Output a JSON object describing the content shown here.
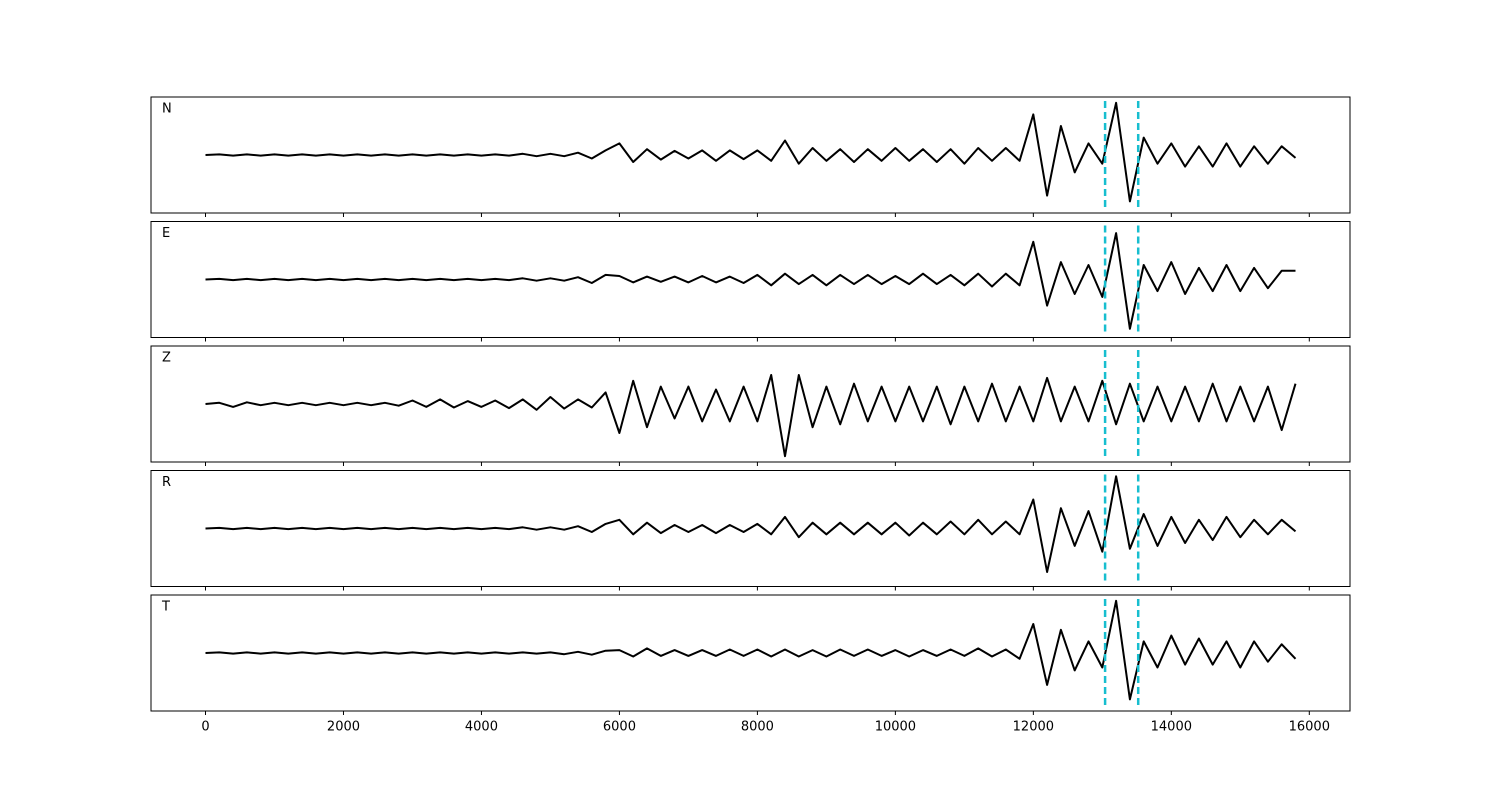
{
  "chart_data": {
    "type": "line",
    "x": [
      0,
      200,
      400,
      600,
      800,
      1000,
      1200,
      1400,
      1600,
      1800,
      2000,
      2200,
      2400,
      2600,
      2800,
      3000,
      3200,
      3400,
      3600,
      3800,
      4000,
      4200,
      4400,
      4600,
      4800,
      5000,
      5200,
      5400,
      5600,
      5800,
      6000,
      6200,
      6400,
      6600,
      6800,
      7000,
      7200,
      7400,
      7600,
      7800,
      8000,
      8200,
      8400,
      8600,
      8800,
      9000,
      9200,
      9400,
      9600,
      9800,
      10000,
      10200,
      10400,
      10600,
      10800,
      11000,
      11200,
      11400,
      11600,
      11800,
      12000,
      12200,
      12400,
      12600,
      12800,
      13000,
      13200,
      13400,
      13600,
      13800,
      14000,
      14200,
      14400,
      14600,
      14800,
      15000,
      15200,
      15400,
      15600,
      15800
    ],
    "xlim": [
      -790,
      16590
    ],
    "xticks": [
      0,
      2000,
      4000,
      6000,
      8000,
      10000,
      12000,
      14000,
      16000
    ],
    "ylim": [
      -1,
      1
    ],
    "series": [
      {
        "name": "N",
        "color": "#000000",
        "values": [
          0,
          0.01,
          -0.01,
          0.01,
          -0.01,
          0.01,
          -0.01,
          0.01,
          -0.01,
          0.01,
          -0.01,
          0.01,
          -0.01,
          0.01,
          -0.01,
          0.01,
          -0.01,
          0.01,
          -0.01,
          0.01,
          -0.01,
          0.01,
          -0.01,
          0.02,
          -0.02,
          0.02,
          -0.02,
          0.04,
          -0.06,
          0.08,
          0.2,
          -0.12,
          0.1,
          -0.08,
          0.07,
          -0.06,
          0.08,
          -0.1,
          0.08,
          -0.07,
          0.08,
          -0.1,
          0.25,
          -0.15,
          0.12,
          -0.1,
          0.1,
          -0.12,
          0.1,
          -0.1,
          0.12,
          -0.1,
          0.1,
          -0.12,
          0.1,
          -0.15,
          0.12,
          -0.1,
          0.12,
          -0.1,
          0.7,
          -0.7,
          0.5,
          -0.3,
          0.2,
          -0.15,
          0.9,
          -0.8,
          0.3,
          -0.15,
          0.2,
          -0.2,
          0.15,
          -0.2,
          0.2,
          -0.2,
          0.15,
          -0.15,
          0.15,
          -0.05
        ]
      },
      {
        "name": "E",
        "color": "#000000",
        "values": [
          0,
          0.01,
          -0.01,
          0.01,
          -0.01,
          0.01,
          -0.01,
          0.01,
          -0.01,
          0.01,
          -0.01,
          0.01,
          -0.01,
          0.01,
          -0.01,
          0.01,
          -0.01,
          0.01,
          -0.01,
          0.01,
          -0.01,
          0.01,
          -0.01,
          0.02,
          -0.02,
          0.02,
          -0.02,
          0.04,
          -0.06,
          0.08,
          0.06,
          -0.05,
          0.05,
          -0.04,
          0.05,
          -0.05,
          0.06,
          -0.05,
          0.05,
          -0.06,
          0.08,
          -0.1,
          0.1,
          -0.08,
          0.08,
          -0.1,
          0.08,
          -0.08,
          0.08,
          -0.08,
          0.06,
          -0.08,
          0.1,
          -0.08,
          0.08,
          -0.1,
          0.1,
          -0.12,
          0.1,
          -0.1,
          0.65,
          -0.45,
          0.3,
          -0.25,
          0.25,
          -0.3,
          0.8,
          -0.85,
          0.25,
          -0.2,
          0.3,
          -0.25,
          0.2,
          -0.2,
          0.25,
          -0.2,
          0.2,
          -0.15,
          0.15,
          0.15
        ]
      },
      {
        "name": "Z",
        "color": "#000000",
        "values": [
          0,
          0.02,
          -0.05,
          0.03,
          -0.02,
          0.02,
          -0.02,
          0.02,
          -0.02,
          0.02,
          -0.02,
          0.02,
          -0.02,
          0.02,
          -0.03,
          0.06,
          -0.05,
          0.08,
          -0.06,
          0.05,
          -0.05,
          0.06,
          -0.07,
          0.08,
          -0.1,
          0.12,
          -0.08,
          0.08,
          -0.06,
          0.2,
          -0.5,
          0.4,
          -0.4,
          0.3,
          -0.25,
          0.3,
          -0.3,
          0.25,
          -0.3,
          0.3,
          -0.3,
          0.5,
          -0.9,
          0.5,
          -0.4,
          0.3,
          -0.35,
          0.35,
          -0.3,
          0.3,
          -0.3,
          0.3,
          -0.3,
          0.3,
          -0.35,
          0.3,
          -0.3,
          0.35,
          -0.3,
          0.3,
          -0.3,
          0.45,
          -0.3,
          0.3,
          -0.3,
          0.4,
          -0.35,
          0.35,
          -0.3,
          0.3,
          -0.3,
          0.3,
          -0.3,
          0.35,
          -0.3,
          0.3,
          -0.3,
          0.3,
          -0.45,
          0.35
        ]
      },
      {
        "name": "R",
        "color": "#000000",
        "values": [
          0,
          0.01,
          -0.01,
          0.01,
          -0.01,
          0.01,
          -0.01,
          0.01,
          -0.01,
          0.01,
          -0.01,
          0.01,
          -0.01,
          0.01,
          -0.01,
          0.01,
          -0.01,
          0.01,
          -0.01,
          0.01,
          -0.01,
          0.01,
          -0.01,
          0.02,
          -0.02,
          0.02,
          -0.02,
          0.04,
          -0.06,
          0.08,
          0.15,
          -0.1,
          0.1,
          -0.08,
          0.06,
          -0.06,
          0.06,
          -0.08,
          0.06,
          -0.06,
          0.08,
          -0.1,
          0.2,
          -0.15,
          0.1,
          -0.1,
          0.1,
          -0.1,
          0.1,
          -0.1,
          0.1,
          -0.12,
          0.1,
          -0.1,
          0.12,
          -0.1,
          0.15,
          -0.1,
          0.12,
          -0.1,
          0.5,
          -0.75,
          0.35,
          -0.3,
          0.3,
          -0.4,
          0.9,
          -0.35,
          0.25,
          -0.3,
          0.2,
          -0.25,
          0.15,
          -0.2,
          0.2,
          -0.15,
          0.15,
          -0.1,
          0.15,
          -0.05
        ]
      },
      {
        "name": "T",
        "color": "#000000",
        "values": [
          0,
          0.01,
          -0.01,
          0.01,
          -0.01,
          0.01,
          -0.01,
          0.01,
          -0.01,
          0.01,
          -0.01,
          0.01,
          -0.01,
          0.01,
          -0.01,
          0.01,
          -0.01,
          0.01,
          -0.01,
          0.01,
          -0.01,
          0.01,
          -0.01,
          0.01,
          -0.01,
          0.01,
          -0.02,
          0.02,
          -0.03,
          0.04,
          0.05,
          -0.06,
          0.08,
          -0.05,
          0.05,
          -0.05,
          0.05,
          -0.05,
          0.06,
          -0.05,
          0.06,
          -0.06,
          0.06,
          -0.06,
          0.05,
          -0.06,
          0.06,
          -0.05,
          0.06,
          -0.05,
          0.05,
          -0.06,
          0.05,
          -0.05,
          0.06,
          -0.05,
          0.08,
          -0.06,
          0.06,
          -0.1,
          0.5,
          -0.55,
          0.4,
          -0.3,
          0.2,
          -0.25,
          0.9,
          -0.8,
          0.2,
          -0.25,
          0.3,
          -0.2,
          0.25,
          -0.2,
          0.2,
          -0.25,
          0.2,
          -0.15,
          0.15,
          -0.1
        ]
      }
    ],
    "vlines": [
      13040,
      13520
    ],
    "vline_color": "#17becf"
  }
}
